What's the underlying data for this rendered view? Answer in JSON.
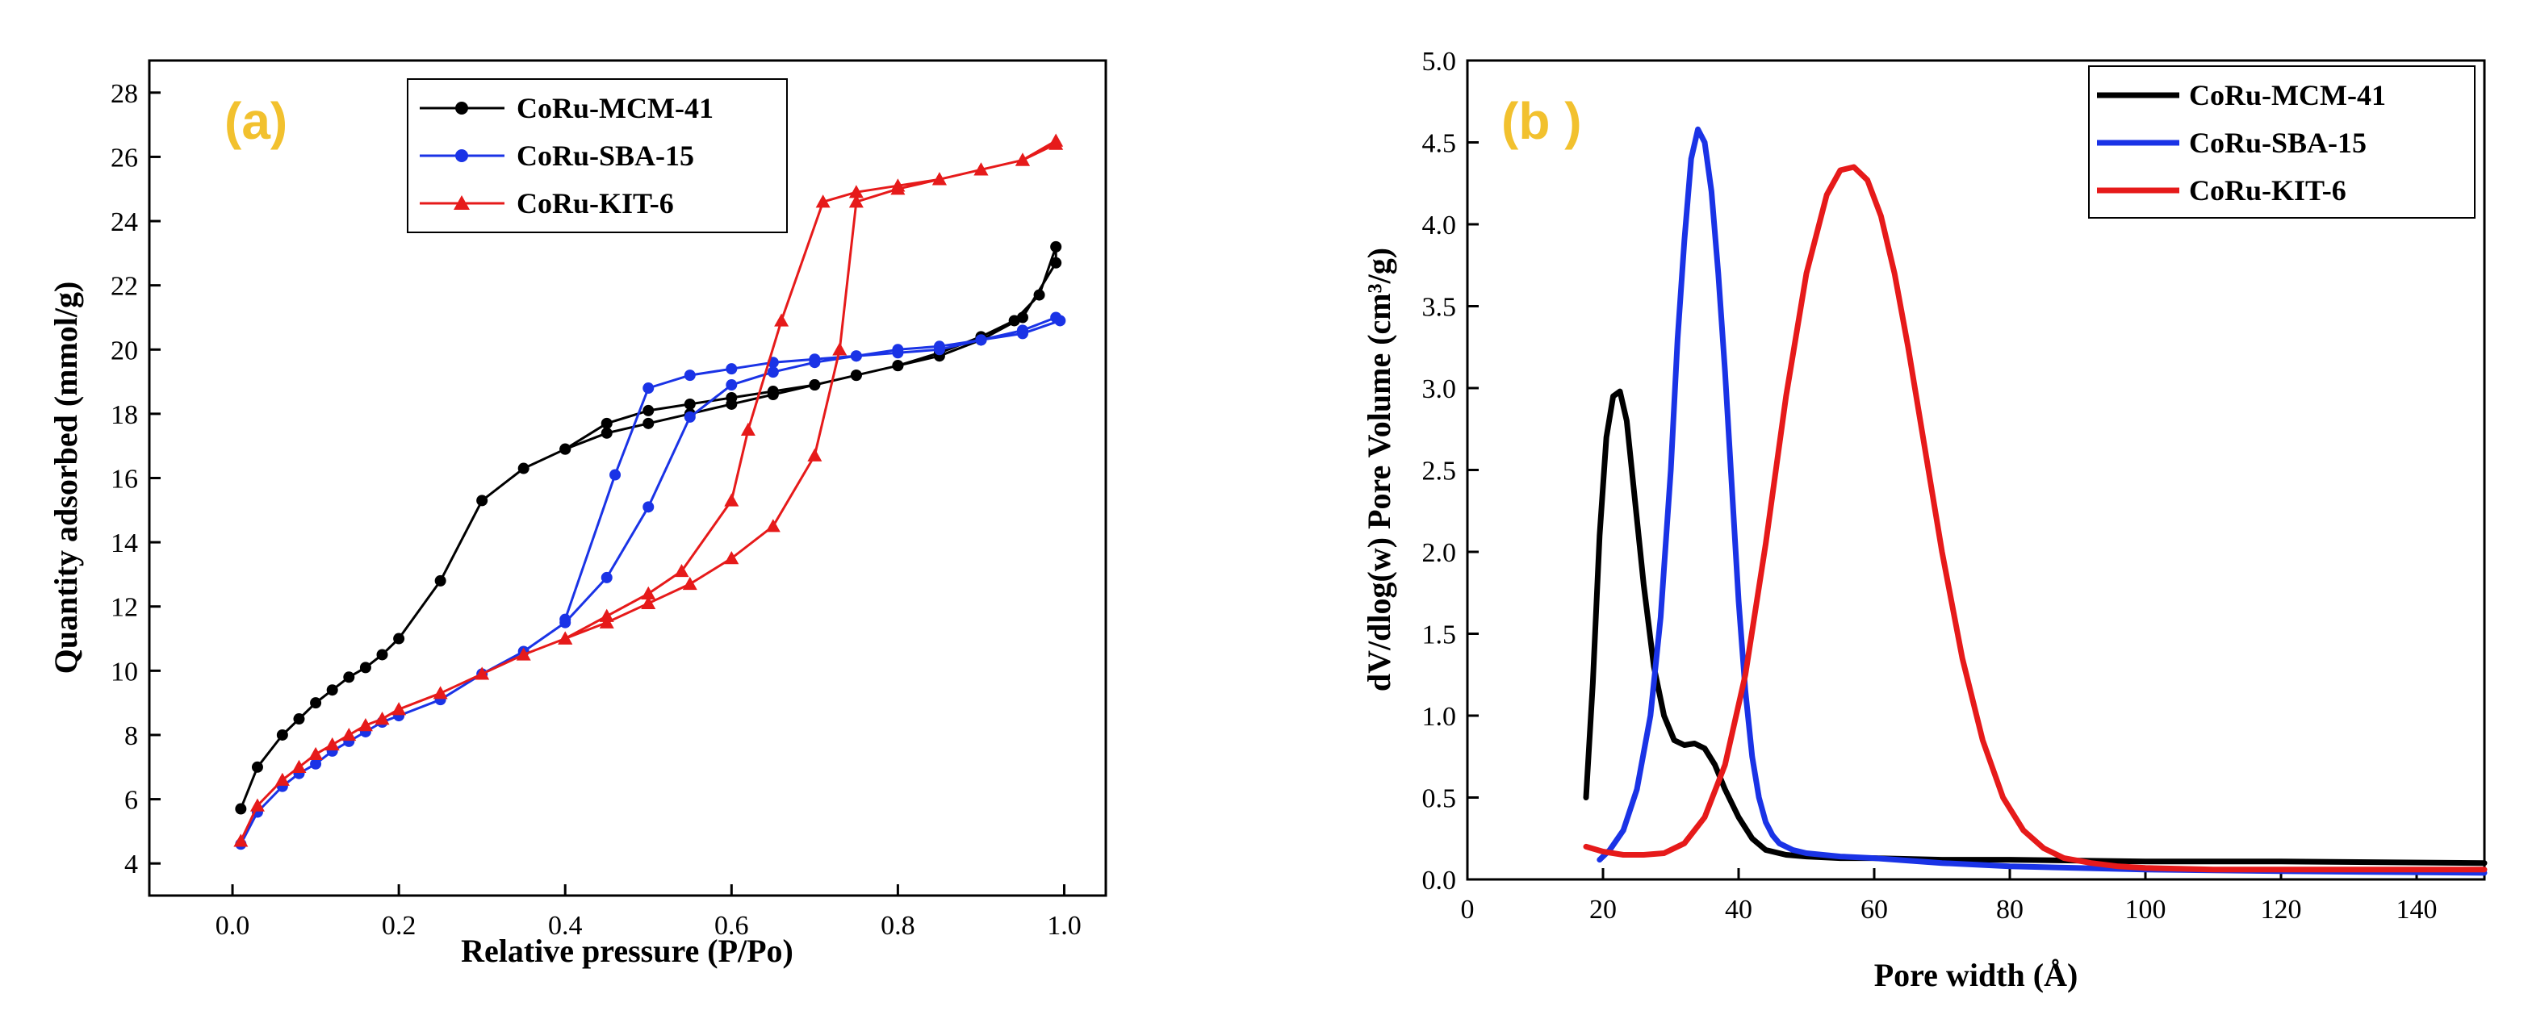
{
  "chart_data": [
    {
      "panel_label": "(a)",
      "type": "line",
      "title": "",
      "xlabel": "Relative pressure (P/Po)",
      "ylabel": "Quantity adsorbed (mmol/g)",
      "xlim": [
        -0.1,
        1.05
      ],
      "ylim": [
        3,
        29
      ],
      "xticks": [
        0.0,
        0.2,
        0.4,
        0.6,
        0.8,
        1.0
      ],
      "xtick_labels": [
        "0.0",
        "0.2",
        "0.4",
        "0.6",
        "0.8",
        "1.0"
      ],
      "yticks": [
        4,
        6,
        8,
        10,
        12,
        14,
        16,
        18,
        20,
        22,
        24,
        26,
        28
      ],
      "ytick_labels": [
        "4",
        "6",
        "8",
        "10",
        "12",
        "14",
        "16",
        "18",
        "20",
        "22",
        "24",
        "26",
        "28"
      ],
      "legend_position": "top-right",
      "series": [
        {
          "name": "CoRu-MCM-41",
          "color": "#000000",
          "marker": "circle",
          "x": [
            0.01,
            0.03,
            0.06,
            0.08,
            0.1,
            0.12,
            0.14,
            0.16,
            0.18,
            0.2,
            0.25,
            0.3,
            0.35,
            0.4,
            0.45,
            0.5,
            0.55,
            0.6,
            0.65,
            0.7,
            0.75,
            0.8,
            0.85,
            0.9,
            0.95,
            0.99,
            0.99,
            0.97,
            0.94,
            0.9,
            0.85,
            0.8,
            0.75,
            0.7,
            0.65,
            0.6,
            0.55,
            0.5,
            0.45,
            0.4
          ],
          "y": [
            5.7,
            7.0,
            8.0,
            8.5,
            9.0,
            9.4,
            9.8,
            10.1,
            10.5,
            11.0,
            12.8,
            15.3,
            16.3,
            16.9,
            17.4,
            17.7,
            18.0,
            18.3,
            18.6,
            18.9,
            19.2,
            19.5,
            19.8,
            20.3,
            21.0,
            22.7,
            23.2,
            21.7,
            20.9,
            20.4,
            19.9,
            19.5,
            19.2,
            18.9,
            18.7,
            18.5,
            18.3,
            18.1,
            17.7,
            16.9
          ]
        },
        {
          "name": "CoRu-SBA-15",
          "color": "#1a33e6",
          "marker": "circle",
          "x": [
            0.01,
            0.03,
            0.06,
            0.08,
            0.1,
            0.12,
            0.14,
            0.16,
            0.18,
            0.2,
            0.25,
            0.3,
            0.35,
            0.4,
            0.45,
            0.5,
            0.55,
            0.6,
            0.65,
            0.7,
            0.75,
            0.8,
            0.85,
            0.9,
            0.95,
            0.995,
            0.99,
            0.95,
            0.9,
            0.85,
            0.8,
            0.75,
            0.7,
            0.65,
            0.6,
            0.55,
            0.5,
            0.46,
            0.4
          ],
          "y": [
            4.6,
            5.6,
            6.4,
            6.8,
            7.1,
            7.5,
            7.8,
            8.1,
            8.4,
            8.6,
            9.1,
            9.9,
            10.6,
            11.5,
            12.9,
            15.1,
            17.9,
            18.9,
            19.3,
            19.6,
            19.8,
            19.9,
            20.0,
            20.3,
            20.5,
            20.9,
            21.0,
            20.6,
            20.3,
            20.1,
            20.0,
            19.8,
            19.7,
            19.6,
            19.4,
            19.2,
            18.8,
            16.1,
            11.6
          ]
        },
        {
          "name": "CoRu-KIT-6",
          "color": "#e61a1a",
          "marker": "triangle",
          "x": [
            0.01,
            0.03,
            0.06,
            0.08,
            0.1,
            0.12,
            0.14,
            0.16,
            0.18,
            0.2,
            0.25,
            0.3,
            0.35,
            0.4,
            0.45,
            0.5,
            0.55,
            0.6,
            0.65,
            0.7,
            0.73,
            0.75,
            0.8,
            0.85,
            0.9,
            0.95,
            0.99,
            0.99,
            0.95,
            0.9,
            0.85,
            0.8,
            0.75,
            0.71,
            0.66,
            0.62,
            0.6,
            0.54,
            0.5,
            0.45,
            0.4
          ],
          "y": [
            4.7,
            5.8,
            6.6,
            7.0,
            7.4,
            7.7,
            8.0,
            8.3,
            8.5,
            8.8,
            9.3,
            9.9,
            10.5,
            11.0,
            11.5,
            12.1,
            12.7,
            13.5,
            14.5,
            16.7,
            20.0,
            24.6,
            25.0,
            25.3,
            25.6,
            25.9,
            26.4,
            26.5,
            25.9,
            25.6,
            25.3,
            25.1,
            24.9,
            24.6,
            20.9,
            17.5,
            15.3,
            13.1,
            12.4,
            11.7,
            11.0
          ]
        }
      ]
    },
    {
      "panel_label": "(b )",
      "type": "line",
      "title": "",
      "xlabel": "Pore width (Å)",
      "ylabel": "dV/dlog(w) Pore Volume (cm³/g)",
      "xlim": [
        0,
        150
      ],
      "ylim": [
        0,
        5.0
      ],
      "xticks": [
        0,
        20,
        40,
        60,
        80,
        100,
        120,
        140
      ],
      "xtick_labels": [
        "0",
        "20",
        "40",
        "60",
        "80",
        "100",
        "120",
        "140"
      ],
      "yticks": [
        0,
        0.5,
        1.0,
        1.5,
        2.0,
        2.5,
        3.0,
        3.5,
        4.0,
        4.5,
        5.0
      ],
      "ytick_labels": [
        "0.0",
        "0.5",
        "1.0",
        "1.5",
        "2.0",
        "2.5",
        "3.0",
        "3.5",
        "4.0",
        "4.5",
        "5.0"
      ],
      "legend_position": "top-right",
      "series": [
        {
          "name": "CoRu-MCM-41",
          "color": "#000000",
          "x": [
            17.5,
            18.5,
            19.5,
            20.5,
            21.5,
            22.5,
            23.5,
            24.5,
            26,
            27.5,
            29,
            30.5,
            32,
            33.5,
            35,
            36.5,
            38,
            40,
            42,
            44,
            47,
            50,
            55,
            60,
            70,
            80,
            100,
            120,
            150
          ],
          "y": [
            0.5,
            1.2,
            2.1,
            2.7,
            2.95,
            2.98,
            2.8,
            2.4,
            1.8,
            1.3,
            1.0,
            0.85,
            0.82,
            0.83,
            0.8,
            0.7,
            0.55,
            0.38,
            0.25,
            0.18,
            0.15,
            0.14,
            0.13,
            0.13,
            0.12,
            0.12,
            0.11,
            0.11,
            0.1
          ]
        },
        {
          "name": "CoRu-SBA-15",
          "color": "#1a33e6",
          "x": [
            19.5,
            21,
            23,
            25,
            27,
            28.5,
            30,
            31,
            32,
            33,
            34,
            35,
            36,
            37,
            38,
            39,
            40,
            41,
            42,
            43,
            44,
            45,
            46,
            48,
            50,
            55,
            60,
            70,
            80,
            100,
            120,
            150
          ],
          "y": [
            0.12,
            0.18,
            0.3,
            0.55,
            1.0,
            1.6,
            2.5,
            3.3,
            3.9,
            4.4,
            4.58,
            4.5,
            4.2,
            3.7,
            3.1,
            2.4,
            1.7,
            1.15,
            0.75,
            0.5,
            0.35,
            0.27,
            0.22,
            0.18,
            0.16,
            0.14,
            0.13,
            0.1,
            0.08,
            0.06,
            0.05,
            0.04
          ]
        },
        {
          "name": "CoRu-KIT-6",
          "color": "#e61a1a",
          "x": [
            17.5,
            20,
            23,
            26,
            29,
            32,
            35,
            38,
            41,
            44,
            47,
            50,
            53,
            55,
            57,
            59,
            61,
            63,
            65,
            67,
            70,
            73,
            76,
            79,
            82,
            85,
            88,
            92,
            96,
            100,
            110,
            120,
            150
          ],
          "y": [
            0.2,
            0.17,
            0.15,
            0.15,
            0.16,
            0.22,
            0.38,
            0.7,
            1.25,
            2.05,
            2.95,
            3.7,
            4.18,
            4.33,
            4.35,
            4.27,
            4.05,
            3.7,
            3.25,
            2.75,
            2.0,
            1.35,
            0.85,
            0.5,
            0.3,
            0.19,
            0.13,
            0.1,
            0.08,
            0.07,
            0.06,
            0.06,
            0.06
          ]
        }
      ]
    }
  ]
}
